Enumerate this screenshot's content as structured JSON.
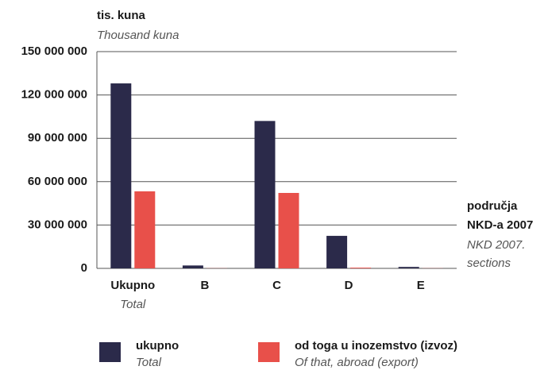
{
  "chart_data": {
    "type": "bar",
    "y_label": "tis. kuna",
    "y_label_en": "Thousand kuna",
    "x_label": [
      "područja",
      "NKD-a 2007"
    ],
    "x_label_en": [
      "NKD 2007.",
      "sections"
    ],
    "categories": [
      "Ukupno",
      "B",
      "C",
      "D",
      "E"
    ],
    "categories_en": [
      "Total",
      null,
      null,
      null,
      null
    ],
    "series": [
      {
        "name": "ukupno",
        "name_en": "Total",
        "color": "#2b2a4a",
        "values": [
          128000000,
          2000000,
          102000000,
          22500000,
          1000000
        ]
      },
      {
        "name": "od toga u inozemstvo (izvoz)",
        "name_en": "Of that, abroad (export)",
        "color": "#e8504a",
        "values": [
          53300000,
          100000,
          52200000,
          500000,
          100000
        ]
      }
    ],
    "ylim": [
      0,
      150000000
    ],
    "yticks": [
      0,
      {
        "value": 30000000,
        "label": "30 000 000"
      },
      {
        "value": 60000000,
        "label": "60 000 000"
      },
      {
        "value": 90000000,
        "label": "90 000 000"
      },
      {
        "value": 120000000,
        "label": "120 000 000"
      },
      {
        "value": 150000000,
        "label": "150 000 000"
      }
    ],
    "grid": true
  }
}
